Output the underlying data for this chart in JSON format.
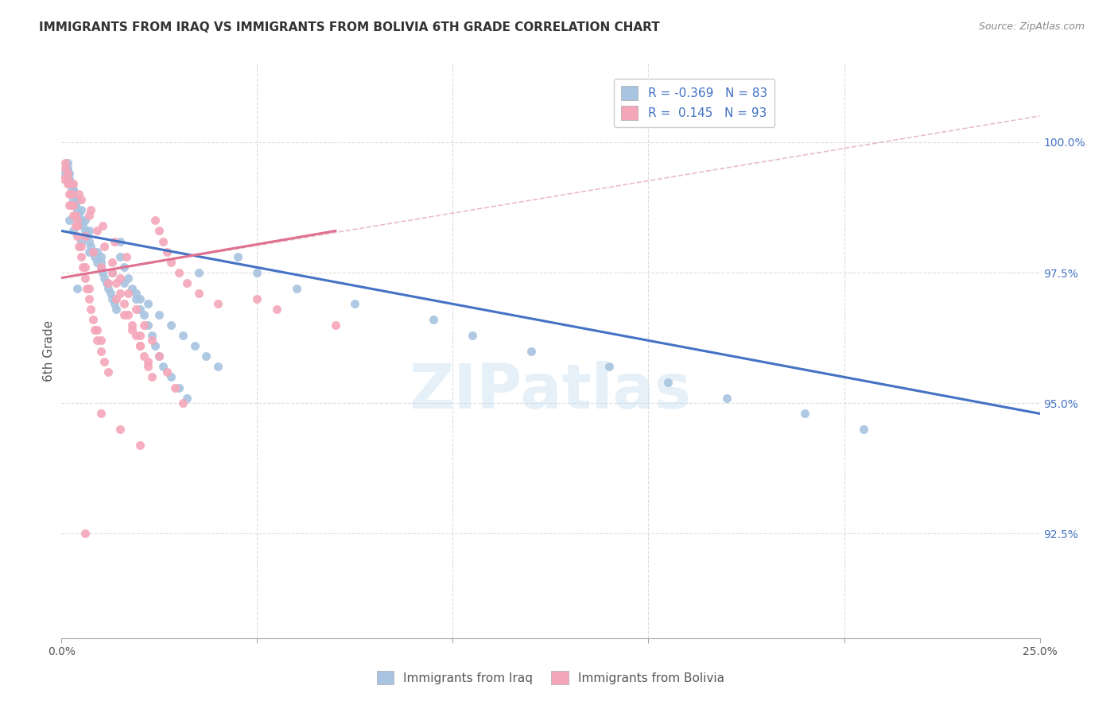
{
  "title": "IMMIGRANTS FROM IRAQ VS IMMIGRANTS FROM BOLIVIA 6TH GRADE CORRELATION CHART",
  "source": "Source: ZipAtlas.com",
  "ylabel": "6th Grade",
  "xlim": [
    0.0,
    25.0
  ],
  "ylim": [
    90.5,
    101.5
  ],
  "iraq_color": "#a8c4e0",
  "bolivia_color": "#f4a7b9",
  "iraq_line_color": "#4472c4",
  "bolivia_line_color": "#e07090",
  "iraq_R": -0.369,
  "iraq_N": 83,
  "bolivia_R": 0.145,
  "bolivia_N": 93,
  "watermark": "ZIPatlas",
  "iraq_line_x0": 0.0,
  "iraq_line_y0": 98.3,
  "iraq_line_x1": 25.0,
  "iraq_line_y1": 94.8,
  "bolivia_line_x0": 0.0,
  "bolivia_line_y0": 97.4,
  "bolivia_line_x1": 7.0,
  "bolivia_line_y1": 98.3,
  "bolivia_dash_x0": 0.0,
  "bolivia_dash_y0": 97.4,
  "bolivia_dash_x1": 25.0,
  "bolivia_dash_y1": 100.5,
  "yticks": [
    92.5,
    95.0,
    97.5,
    100.0
  ],
  "iraq_scatter_x": [
    0.1,
    0.15,
    0.15,
    0.2,
    0.2,
    0.25,
    0.25,
    0.3,
    0.3,
    0.3,
    0.35,
    0.4,
    0.4,
    0.45,
    0.5,
    0.5,
    0.55,
    0.6,
    0.6,
    0.65,
    0.7,
    0.7,
    0.75,
    0.8,
    0.85,
    0.9,
    0.9,
    1.0,
    1.0,
    1.05,
    1.1,
    1.15,
    1.2,
    1.25,
    1.3,
    1.35,
    1.4,
    1.5,
    1.5,
    1.6,
    1.7,
    1.8,
    1.9,
    2.0,
    2.0,
    2.1,
    2.2,
    2.3,
    2.4,
    2.5,
    2.6,
    2.8,
    3.0,
    3.2,
    3.5,
    4.5,
    5.0,
    6.0,
    7.5,
    9.5,
    10.5,
    12.0,
    14.0,
    15.5,
    17.0,
    19.0,
    20.5,
    0.2,
    0.3,
    0.5,
    0.7,
    1.0,
    1.3,
    1.6,
    1.9,
    2.2,
    2.5,
    2.8,
    3.1,
    3.4,
    3.7,
    4.0,
    0.4
  ],
  "iraq_scatter_y": [
    99.4,
    99.5,
    99.6,
    99.3,
    99.4,
    99.1,
    99.2,
    98.9,
    99.0,
    99.1,
    98.8,
    98.7,
    98.9,
    98.6,
    98.5,
    98.7,
    98.4,
    98.3,
    98.5,
    98.2,
    98.1,
    98.3,
    98.0,
    97.9,
    97.8,
    97.7,
    97.9,
    97.6,
    97.8,
    97.5,
    97.4,
    97.3,
    97.2,
    97.1,
    97.0,
    96.9,
    96.8,
    98.1,
    97.8,
    97.6,
    97.4,
    97.2,
    97.0,
    96.8,
    97.0,
    96.7,
    96.5,
    96.3,
    96.1,
    95.9,
    95.7,
    95.5,
    95.3,
    95.1,
    97.5,
    97.8,
    97.5,
    97.2,
    96.9,
    96.6,
    96.3,
    96.0,
    95.7,
    95.4,
    95.1,
    94.8,
    94.5,
    98.5,
    98.3,
    98.1,
    97.9,
    97.7,
    97.5,
    97.3,
    97.1,
    96.9,
    96.7,
    96.5,
    96.3,
    96.1,
    95.9,
    95.7,
    97.2
  ],
  "bolivia_scatter_x": [
    0.05,
    0.1,
    0.1,
    0.15,
    0.15,
    0.2,
    0.2,
    0.25,
    0.25,
    0.3,
    0.3,
    0.35,
    0.35,
    0.4,
    0.4,
    0.45,
    0.5,
    0.5,
    0.55,
    0.6,
    0.6,
    0.65,
    0.7,
    0.7,
    0.75,
    0.8,
    0.85,
    0.9,
    0.9,
    1.0,
    1.0,
    1.1,
    1.2,
    1.3,
    1.4,
    1.5,
    1.6,
    1.7,
    1.8,
    1.9,
    2.0,
    2.0,
    2.1,
    2.2,
    2.3,
    2.4,
    2.5,
    2.6,
    2.7,
    2.8,
    3.0,
    3.2,
    3.5,
    4.0,
    5.0,
    5.5,
    7.0,
    0.3,
    0.5,
    0.7,
    0.9,
    1.1,
    1.3,
    1.5,
    1.7,
    1.9,
    2.1,
    2.3,
    2.5,
    2.7,
    2.9,
    3.1,
    0.2,
    0.4,
    0.6,
    0.8,
    1.0,
    1.2,
    1.4,
    1.6,
    1.8,
    2.0,
    2.2,
    0.15,
    0.45,
    0.75,
    1.05,
    1.35,
    1.65,
    1.0,
    1.5,
    2.0,
    0.6
  ],
  "bolivia_scatter_y": [
    99.3,
    99.5,
    99.6,
    99.2,
    99.4,
    99.0,
    99.2,
    98.8,
    99.0,
    98.6,
    98.8,
    98.4,
    98.6,
    98.2,
    98.4,
    98.0,
    97.8,
    98.0,
    97.6,
    97.4,
    97.6,
    97.2,
    97.0,
    97.2,
    96.8,
    96.6,
    96.4,
    96.2,
    96.4,
    96.0,
    96.2,
    95.8,
    95.6,
    97.5,
    97.3,
    97.1,
    96.9,
    96.7,
    96.5,
    96.3,
    96.1,
    96.3,
    95.9,
    95.7,
    95.5,
    98.5,
    98.3,
    98.1,
    97.9,
    97.7,
    97.5,
    97.3,
    97.1,
    96.9,
    97.0,
    96.8,
    96.5,
    99.2,
    98.9,
    98.6,
    98.3,
    98.0,
    97.7,
    97.4,
    97.1,
    96.8,
    96.5,
    96.2,
    95.9,
    95.6,
    95.3,
    95.0,
    98.8,
    98.5,
    98.2,
    97.9,
    97.6,
    97.3,
    97.0,
    96.7,
    96.4,
    96.1,
    95.8,
    99.3,
    99.0,
    98.7,
    98.4,
    98.1,
    97.8,
    94.8,
    94.5,
    94.2,
    92.5
  ]
}
